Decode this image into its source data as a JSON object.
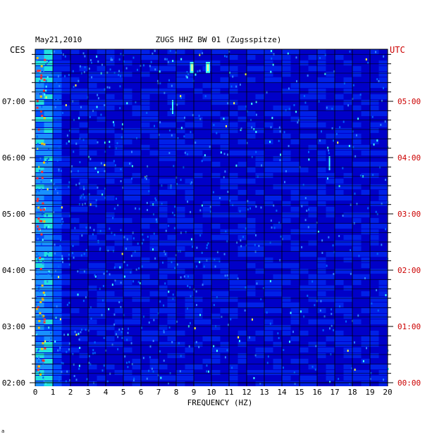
{
  "chart_data": {
    "type": "heatmap",
    "date": "May21,2010",
    "title": "ZUGS HHZ BW 01 (Zugsspitze)",
    "left_timezone": "CES",
    "right_timezone": "UTC",
    "xlabel": "FREQUENCY (HZ)",
    "xlim": [
      0,
      20
    ],
    "x_ticks": [
      "0",
      "1",
      "2",
      "3",
      "4",
      "5",
      "6",
      "7",
      "8",
      "9",
      "10",
      "11",
      "12",
      "13",
      "14",
      "15",
      "16",
      "17",
      "18",
      "19",
      "20"
    ],
    "left_time_ticks": [
      "07:00",
      "06:00",
      "05:00",
      "04:00",
      "03:00",
      "02:00"
    ],
    "right_time_ticks": [
      "05:00",
      "04:00",
      "03:00",
      "02:00",
      "01:00",
      "00:00"
    ],
    "time_range_hours": [
      0,
      5.9
    ],
    "grid": true,
    "colors": {
      "background": "#0000d0",
      "grid": "#000000",
      "utc": "#cc0000",
      "text": "#000000"
    },
    "features": [
      {
        "freq": 8.9,
        "t": 5.6,
        "note": "bright spot"
      },
      {
        "freq": 9.8,
        "t": 5.6,
        "note": "bright spot"
      },
      {
        "freq": 16.7,
        "t": 3.9,
        "note": "streak"
      },
      {
        "freq": 7.8,
        "t": 4.9,
        "note": "streak"
      }
    ]
  },
  "footer_mark": "a"
}
